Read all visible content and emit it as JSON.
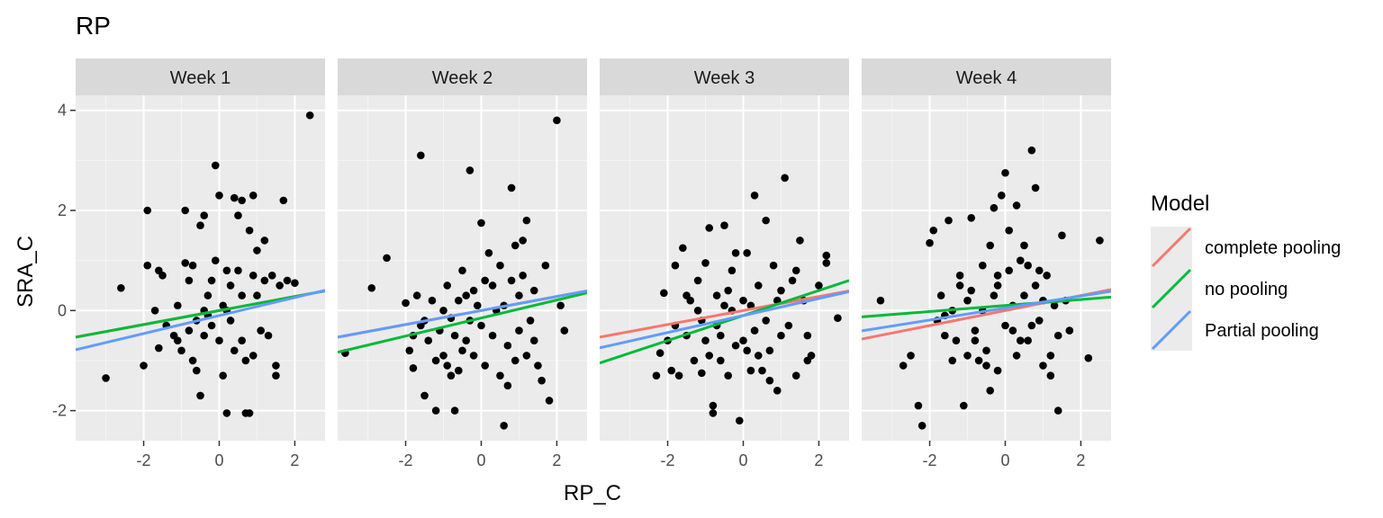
{
  "chart_data": {
    "type": "scatter",
    "title": "RP",
    "xlabel": "RP_C",
    "ylabel": "SRA_C",
    "xlim": [
      -3.8,
      2.8
    ],
    "ylim": [
      -2.6,
      4.3
    ],
    "x_ticks": [
      -2,
      0,
      2
    ],
    "y_ticks": [
      -2,
      0,
      2,
      4
    ],
    "x_tick_labels": [
      "-2",
      "0",
      "2"
    ],
    "y_tick_labels": [
      "-2",
      "0",
      "2",
      "4"
    ],
    "grid": true,
    "legend": {
      "title": "Model",
      "position": "right",
      "entries": [
        {
          "label": "complete pooling",
          "color": "#F8766D"
        },
        {
          "label": "no pooling",
          "color": "#00BA38"
        },
        {
          "label": "Partial pooling",
          "color": "#619CFF"
        }
      ]
    },
    "panels": [
      {
        "label": "Week 1",
        "lines": [
          {
            "model": "complete pooling",
            "intercept": 0.0,
            "slope": 0.14
          },
          {
            "model": "no pooling",
            "intercept": 0.0,
            "slope": 0.14
          },
          {
            "model": "Partial pooling",
            "intercept": -0.1,
            "slope": 0.18
          }
        ],
        "points": [
          [
            -3.0,
            -1.35
          ],
          [
            -2.6,
            0.45
          ],
          [
            -2.0,
            -1.1
          ],
          [
            -1.9,
            2.0
          ],
          [
            -1.9,
            0.9
          ],
          [
            -1.7,
            0.0
          ],
          [
            -1.6,
            0.8
          ],
          [
            -1.5,
            0.7
          ],
          [
            -1.4,
            -0.3
          ],
          [
            -1.6,
            -0.75
          ],
          [
            -1.2,
            -0.5
          ],
          [
            -1.1,
            0.1
          ],
          [
            -0.9,
            2.0
          ],
          [
            -1.0,
            -0.8
          ],
          [
            -0.9,
            0.95
          ],
          [
            -0.8,
            0.6
          ],
          [
            -0.7,
            0.9
          ],
          [
            -0.6,
            -0.2
          ],
          [
            -0.5,
            1.7
          ],
          [
            -0.4,
            1.9
          ],
          [
            -0.6,
            -1.2
          ],
          [
            -0.5,
            -1.7
          ],
          [
            -0.4,
            -0.5
          ],
          [
            -0.3,
            0.3
          ],
          [
            -0.2,
            0.6
          ],
          [
            -0.1,
            2.9
          ],
          [
            0.0,
            2.3
          ],
          [
            -0.1,
            1.0
          ],
          [
            0.0,
            -0.6
          ],
          [
            0.1,
            -1.3
          ],
          [
            0.2,
            -2.05
          ],
          [
            0.2,
            0.0
          ],
          [
            0.3,
            0.5
          ],
          [
            0.4,
            2.25
          ],
          [
            0.5,
            1.9
          ],
          [
            0.5,
            0.8
          ],
          [
            0.6,
            2.2
          ],
          [
            0.6,
            -0.6
          ],
          [
            0.7,
            -1.0
          ],
          [
            0.7,
            -2.05
          ],
          [
            0.8,
            -2.05
          ],
          [
            0.8,
            1.6
          ],
          [
            0.9,
            0.7
          ],
          [
            0.9,
            2.3
          ],
          [
            1.0,
            0.3
          ],
          [
            1.1,
            -0.4
          ],
          [
            1.2,
            1.4
          ],
          [
            1.2,
            0.6
          ],
          [
            1.3,
            -0.5
          ],
          [
            1.4,
            0.7
          ],
          [
            1.5,
            -1.1
          ],
          [
            1.5,
            -1.3
          ],
          [
            1.6,
            0.5
          ],
          [
            1.7,
            2.2
          ],
          [
            1.8,
            0.6
          ],
          [
            2.0,
            0.55
          ],
          [
            2.4,
            3.9
          ],
          [
            -0.2,
            -0.3
          ],
          [
            -0.3,
            -0.1
          ],
          [
            0.1,
            0.1
          ],
          [
            0.3,
            -0.2
          ],
          [
            0.6,
            0.3
          ],
          [
            -0.8,
            -0.4
          ],
          [
            -1.1,
            -0.6
          ],
          [
            0.9,
            -0.9
          ],
          [
            1.0,
            1.2
          ],
          [
            -0.7,
            -1.0
          ],
          [
            0.4,
            -0.8
          ],
          [
            0.2,
            0.8
          ],
          [
            -0.4,
            0.0
          ]
        ]
      },
      {
        "label": "Week 2",
        "lines": [
          {
            "model": "complete pooling",
            "intercept": 0.0,
            "slope": 0.14
          },
          {
            "model": "no pooling",
            "intercept": -0.15,
            "slope": 0.18
          },
          {
            "model": "Partial pooling",
            "intercept": 0.0,
            "slope": 0.14
          }
        ],
        "points": [
          [
            -3.6,
            -0.85
          ],
          [
            -2.9,
            0.45
          ],
          [
            -2.5,
            1.05
          ],
          [
            -2.0,
            0.15
          ],
          [
            -1.9,
            -0.8
          ],
          [
            -1.8,
            -1.15
          ],
          [
            -1.7,
            0.3
          ],
          [
            -1.6,
            3.1
          ],
          [
            -1.6,
            -0.3
          ],
          [
            -1.5,
            -0.2
          ],
          [
            -1.5,
            -1.7
          ],
          [
            -1.4,
            -0.6
          ],
          [
            -1.3,
            0.2
          ],
          [
            -1.2,
            -2.0
          ],
          [
            -1.1,
            -0.4
          ],
          [
            -1.0,
            -0.9
          ],
          [
            -0.9,
            0.5
          ],
          [
            -0.8,
            -0.15
          ],
          [
            -0.7,
            -0.5
          ],
          [
            -0.8,
            -1.3
          ],
          [
            -0.7,
            -2.0
          ],
          [
            -0.6,
            -1.2
          ],
          [
            -0.5,
            0.8
          ],
          [
            -0.4,
            0.3
          ],
          [
            -0.4,
            -0.6
          ],
          [
            -0.3,
            2.8
          ],
          [
            -0.2,
            -0.9
          ],
          [
            -0.1,
            0.1
          ],
          [
            0.0,
            -0.3
          ],
          [
            0.0,
            1.75
          ],
          [
            0.1,
            -1.1
          ],
          [
            0.2,
            1.15
          ],
          [
            0.3,
            0.5
          ],
          [
            0.4,
            0.0
          ],
          [
            0.5,
            0.9
          ],
          [
            0.6,
            0.1
          ],
          [
            0.6,
            -2.3
          ],
          [
            0.7,
            -1.5
          ],
          [
            0.8,
            2.45
          ],
          [
            0.8,
            0.6
          ],
          [
            0.9,
            1.3
          ],
          [
            1.0,
            -0.4
          ],
          [
            1.1,
            0.7
          ],
          [
            1.2,
            1.8
          ],
          [
            1.2,
            -0.9
          ],
          [
            1.3,
            -0.2
          ],
          [
            1.4,
            0.4
          ],
          [
            1.5,
            -1.1
          ],
          [
            1.6,
            -1.4
          ],
          [
            1.7,
            0.9
          ],
          [
            1.8,
            -1.8
          ],
          [
            2.0,
            3.8
          ],
          [
            2.1,
            0.1
          ],
          [
            2.2,
            -0.4
          ],
          [
            -1.0,
            0.0
          ],
          [
            -0.6,
            0.2
          ],
          [
            -0.2,
            0.4
          ],
          [
            0.3,
            -0.5
          ],
          [
            0.7,
            -0.7
          ],
          [
            1.0,
            0.3
          ],
          [
            1.4,
            -0.6
          ],
          [
            -1.2,
            -1.0
          ],
          [
            -0.5,
            -0.8
          ],
          [
            0.1,
            0.6
          ],
          [
            0.5,
            -1.3
          ],
          [
            -0.9,
            -1.1
          ],
          [
            1.1,
            1.4
          ],
          [
            -0.3,
            -0.2
          ],
          [
            0.9,
            -1.0
          ],
          [
            -1.8,
            -0.5
          ]
        ]
      },
      {
        "label": "Week 3",
        "lines": [
          {
            "model": "complete pooling",
            "intercept": 0.0,
            "slope": 0.14
          },
          {
            "model": "no pooling",
            "intercept": -0.1,
            "slope": 0.25
          },
          {
            "model": "Partial pooling",
            "intercept": -0.1,
            "slope": 0.17
          }
        ],
        "points": [
          [
            -2.3,
            -1.3
          ],
          [
            -2.2,
            -0.85
          ],
          [
            -2.1,
            0.35
          ],
          [
            -2.0,
            -0.6
          ],
          [
            -1.9,
            -1.2
          ],
          [
            -1.8,
            -0.3
          ],
          [
            -1.8,
            0.9
          ],
          [
            -1.7,
            -1.3
          ],
          [
            -1.6,
            1.25
          ],
          [
            -1.5,
            -0.5
          ],
          [
            -1.4,
            0.2
          ],
          [
            -1.3,
            -1.0
          ],
          [
            -1.2,
            0.6
          ],
          [
            -1.1,
            -1.25
          ],
          [
            -1.1,
            -0.2
          ],
          [
            -1.0,
            0.95
          ],
          [
            -0.9,
            1.65
          ],
          [
            -0.9,
            -0.9
          ],
          [
            -0.8,
            -2.05
          ],
          [
            -0.8,
            -1.9
          ],
          [
            -0.7,
            0.3
          ],
          [
            -0.6,
            -0.5
          ],
          [
            -0.5,
            0.1
          ],
          [
            -0.5,
            1.7
          ],
          [
            -0.4,
            -1.3
          ],
          [
            -0.3,
            0.8
          ],
          [
            -0.2,
            1.15
          ],
          [
            -0.2,
            -0.7
          ],
          [
            -0.1,
            -2.2
          ],
          [
            0.0,
            0.2
          ],
          [
            0.0,
            -0.6
          ],
          [
            0.1,
            1.15
          ],
          [
            0.2,
            -1.2
          ],
          [
            0.3,
            2.3
          ],
          [
            0.3,
            -0.4
          ],
          [
            0.4,
            0.5
          ],
          [
            0.5,
            -1.2
          ],
          [
            0.6,
            1.8
          ],
          [
            0.7,
            -0.8
          ],
          [
            0.7,
            -1.4
          ],
          [
            0.8,
            0.9
          ],
          [
            0.9,
            0.2
          ],
          [
            1.0,
            -0.5
          ],
          [
            1.1,
            2.65
          ],
          [
            1.2,
            -0.3
          ],
          [
            1.3,
            0.6
          ],
          [
            1.4,
            -1.3
          ],
          [
            1.5,
            1.4
          ],
          [
            1.6,
            0.2
          ],
          [
            1.7,
            -0.5
          ],
          [
            1.8,
            -0.9
          ],
          [
            2.0,
            0.5
          ],
          [
            2.2,
            0.95
          ],
          [
            2.5,
            -0.15
          ],
          [
            2.2,
            1.1
          ],
          [
            -1.2,
            0.0
          ],
          [
            -0.7,
            -0.3
          ],
          [
            -0.3,
            0.0
          ],
          [
            0.2,
            0.1
          ],
          [
            0.6,
            -0.2
          ],
          [
            1.0,
            0.4
          ],
          [
            -1.5,
            0.3
          ],
          [
            -1.0,
            -0.6
          ],
          [
            -0.4,
            0.4
          ],
          [
            0.4,
            -0.9
          ],
          [
            0.9,
            -1.6
          ],
          [
            1.4,
            0.8
          ],
          [
            -0.6,
            -1.0
          ],
          [
            0.1,
            -0.8
          ],
          [
            1.7,
            -1.0
          ]
        ]
      },
      {
        "label": "Week 4",
        "lines": [
          {
            "model": "complete pooling",
            "intercept": 0.0,
            "slope": 0.15
          },
          {
            "model": "no pooling",
            "intercept": 0.1,
            "slope": 0.06
          },
          {
            "model": "Partial pooling",
            "intercept": 0.05,
            "slope": 0.12
          }
        ],
        "points": [
          [
            -3.3,
            0.2
          ],
          [
            -2.7,
            -1.1
          ],
          [
            -2.5,
            -0.9
          ],
          [
            -2.3,
            -1.9
          ],
          [
            -2.2,
            -2.3
          ],
          [
            -2.0,
            1.35
          ],
          [
            -1.9,
            1.6
          ],
          [
            -1.8,
            -0.2
          ],
          [
            -1.7,
            0.3
          ],
          [
            -1.6,
            -0.5
          ],
          [
            -1.5,
            1.8
          ],
          [
            -1.4,
            0.0
          ],
          [
            -1.3,
            -0.6
          ],
          [
            -1.2,
            0.7
          ],
          [
            -1.1,
            -1.9
          ],
          [
            -1.0,
            -0.9
          ],
          [
            -0.9,
            1.85
          ],
          [
            -0.9,
            0.4
          ],
          [
            -0.8,
            -0.4
          ],
          [
            -0.7,
            -1.0
          ],
          [
            -0.6,
            0.9
          ],
          [
            -0.5,
            -1.1
          ],
          [
            -0.4,
            1.3
          ],
          [
            -0.4,
            -1.6
          ],
          [
            -0.3,
            2.05
          ],
          [
            -0.2,
            0.7
          ],
          [
            -0.1,
            2.3
          ],
          [
            0.0,
            2.75
          ],
          [
            0.0,
            -0.3
          ],
          [
            0.1,
            1.6
          ],
          [
            0.2,
            0.1
          ],
          [
            0.3,
            2.1
          ],
          [
            0.3,
            -0.9
          ],
          [
            0.4,
            1.0
          ],
          [
            0.5,
            0.3
          ],
          [
            0.6,
            -0.6
          ],
          [
            0.7,
            3.2
          ],
          [
            0.8,
            2.45
          ],
          [
            0.8,
            0.5
          ],
          [
            0.9,
            -0.2
          ],
          [
            1.0,
            -1.1
          ],
          [
            1.1,
            0.7
          ],
          [
            1.2,
            -0.9
          ],
          [
            1.3,
            0.1
          ],
          [
            1.4,
            -2.0
          ],
          [
            1.5,
            1.5
          ],
          [
            1.6,
            0.2
          ],
          [
            1.7,
            -0.4
          ],
          [
            2.2,
            -0.95
          ],
          [
            2.5,
            1.4
          ],
          [
            -1.0,
            0.2
          ],
          [
            -0.6,
            0.0
          ],
          [
            -0.2,
            0.5
          ],
          [
            0.2,
            -0.4
          ],
          [
            0.6,
            0.9
          ],
          [
            1.0,
            0.2
          ],
          [
            -1.6,
            -0.1
          ],
          [
            -1.2,
            0.5
          ],
          [
            -0.8,
            -0.6
          ],
          [
            -0.3,
            0.3
          ],
          [
            0.4,
            -0.6
          ],
          [
            0.9,
            0.8
          ],
          [
            1.4,
            -0.5
          ],
          [
            -0.5,
            -0.8
          ],
          [
            0.1,
            0.8
          ],
          [
            0.7,
            -0.3
          ],
          [
            -1.4,
            -1.0
          ],
          [
            1.2,
            -1.3
          ],
          [
            -0.2,
            -1.2
          ],
          [
            0.5,
            1.3
          ]
        ]
      }
    ]
  }
}
